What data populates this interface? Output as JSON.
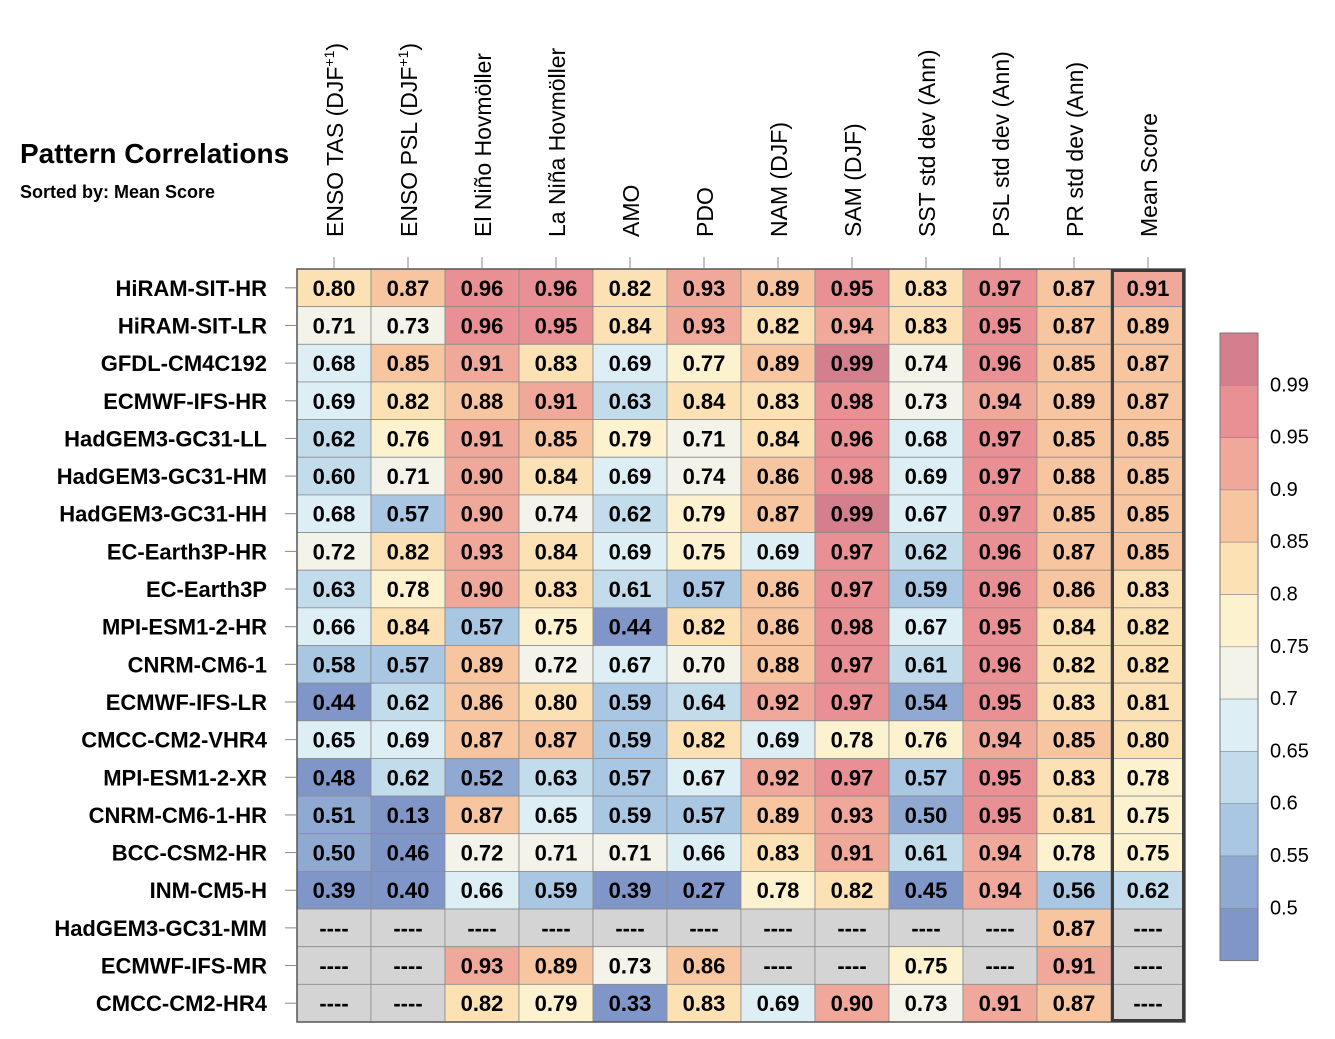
{
  "chart_data": {
    "type": "heatmap",
    "title": "Pattern Correlations",
    "subtitle": "Sorted by: Mean Score",
    "columns": [
      "ENSO TAS (DJF+1)",
      "ENSO PSL (DJF+1)",
      "El Niño Hovmöller",
      "La Niña Hovmöller",
      "AMO",
      "PDO",
      "NAM (DJF)",
      "SAM (DJF)",
      "SST std dev (Ann)",
      "PSL std dev (Ann)",
      "PR std dev (Ann)",
      "Mean Score"
    ],
    "rows": [
      "HiRAM-SIT-HR",
      "HiRAM-SIT-LR",
      "GFDL-CM4C192",
      "ECMWF-IFS-HR",
      "HadGEM3-GC31-LL",
      "HadGEM3-GC31-HM",
      "HadGEM3-GC31-HH",
      "EC-Earth3P-HR",
      "EC-Earth3P",
      "MPI-ESM1-2-HR",
      "CNRM-CM6-1",
      "ECMWF-IFS-LR",
      "CMCC-CM2-VHR4",
      "MPI-ESM1-2-XR",
      "CNRM-CM6-1-HR",
      "BCC-CSM2-HR",
      "INM-CM5-H",
      "HadGEM3-GC31-MM",
      "ECMWF-IFS-MR",
      "CMCC-CM2-HR4"
    ],
    "values": [
      [
        "0.80",
        "0.87",
        "0.96",
        "0.96",
        "0.82",
        "0.93",
        "0.89",
        "0.95",
        "0.83",
        "0.97",
        "0.87",
        "0.91"
      ],
      [
        "0.71",
        "0.73",
        "0.96",
        "0.95",
        "0.84",
        "0.93",
        "0.82",
        "0.94",
        "0.83",
        "0.95",
        "0.87",
        "0.89"
      ],
      [
        "0.68",
        "0.85",
        "0.91",
        "0.83",
        "0.69",
        "0.77",
        "0.89",
        "0.99",
        "0.74",
        "0.96",
        "0.85",
        "0.87"
      ],
      [
        "0.69",
        "0.82",
        "0.88",
        "0.91",
        "0.63",
        "0.84",
        "0.83",
        "0.98",
        "0.73",
        "0.94",
        "0.89",
        "0.87"
      ],
      [
        "0.62",
        "0.76",
        "0.91",
        "0.85",
        "0.79",
        "0.71",
        "0.84",
        "0.96",
        "0.68",
        "0.97",
        "0.85",
        "0.85"
      ],
      [
        "0.60",
        "0.71",
        "0.90",
        "0.84",
        "0.69",
        "0.74",
        "0.86",
        "0.98",
        "0.69",
        "0.97",
        "0.88",
        "0.85"
      ],
      [
        "0.68",
        "0.57",
        "0.90",
        "0.74",
        "0.62",
        "0.79",
        "0.87",
        "0.99",
        "0.67",
        "0.97",
        "0.85",
        "0.85"
      ],
      [
        "0.72",
        "0.82",
        "0.93",
        "0.84",
        "0.69",
        "0.75",
        "0.69",
        "0.97",
        "0.62",
        "0.96",
        "0.87",
        "0.85"
      ],
      [
        "0.63",
        "0.78",
        "0.90",
        "0.83",
        "0.61",
        "0.57",
        "0.86",
        "0.97",
        "0.59",
        "0.96",
        "0.86",
        "0.83"
      ],
      [
        "0.66",
        "0.84",
        "0.57",
        "0.75",
        "0.44",
        "0.82",
        "0.86",
        "0.98",
        "0.67",
        "0.95",
        "0.84",
        "0.82"
      ],
      [
        "0.58",
        "0.57",
        "0.89",
        "0.72",
        "0.67",
        "0.70",
        "0.88",
        "0.97",
        "0.61",
        "0.96",
        "0.82",
        "0.82"
      ],
      [
        "0.44",
        "0.62",
        "0.86",
        "0.80",
        "0.59",
        "0.64",
        "0.92",
        "0.97",
        "0.54",
        "0.95",
        "0.83",
        "0.81"
      ],
      [
        "0.65",
        "0.69",
        "0.87",
        "0.87",
        "0.59",
        "0.82",
        "0.69",
        "0.78",
        "0.76",
        "0.94",
        "0.85",
        "0.80"
      ],
      [
        "0.48",
        "0.62",
        "0.52",
        "0.63",
        "0.57",
        "0.67",
        "0.92",
        "0.97",
        "0.57",
        "0.95",
        "0.83",
        "0.78"
      ],
      [
        "0.51",
        "0.13",
        "0.87",
        "0.65",
        "0.59",
        "0.57",
        "0.89",
        "0.93",
        "0.50",
        "0.95",
        "0.81",
        "0.75"
      ],
      [
        "0.50",
        "0.46",
        "0.72",
        "0.71",
        "0.71",
        "0.66",
        "0.83",
        "0.91",
        "0.61",
        "0.94",
        "0.78",
        "0.75"
      ],
      [
        "0.39",
        "0.40",
        "0.66",
        "0.59",
        "0.39",
        "0.27",
        "0.78",
        "0.82",
        "0.45",
        "0.94",
        "0.56",
        "0.62"
      ],
      [
        "----",
        "----",
        "----",
        "----",
        "----",
        "----",
        "----",
        "----",
        "----",
        "----",
        "0.87",
        "----"
      ],
      [
        "----",
        "----",
        "0.93",
        "0.89",
        "0.73",
        "0.86",
        "----",
        "----",
        "0.75",
        "----",
        "0.91",
        "----"
      ],
      [
        "----",
        "----",
        "0.82",
        "0.79",
        "0.33",
        "0.83",
        "0.69",
        "0.90",
        "0.73",
        "0.91",
        "0.87",
        "----"
      ]
    ],
    "missing_label": "----",
    "colorbar": {
      "labels": [
        "0.99",
        "0.95",
        "0.9",
        "0.85",
        "0.8",
        "0.75",
        "0.7",
        "0.65",
        "0.6",
        "0.55",
        "0.5"
      ],
      "colors": [
        "#d47f8e",
        "#e89093",
        "#f0a89a",
        "#f7c5a0",
        "#fbe1b4",
        "#fcf2cf",
        "#f3f3ea",
        "#ddeef5",
        "#c3dcec",
        "#a9c6e3",
        "#8fa9d3",
        "#8096c9"
      ],
      "missing_color": "#d4d4d4"
    }
  }
}
